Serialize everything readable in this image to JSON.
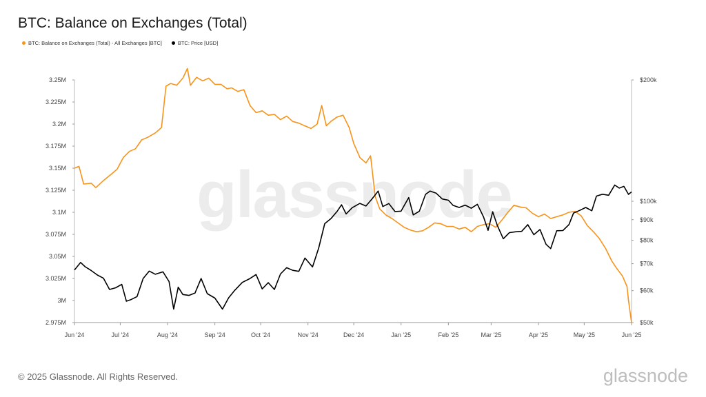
{
  "title": "BTC: Balance on Exchanges (Total)",
  "legend": {
    "items": [
      {
        "label": "BTC: Balance on Exchanges (Total) - All Exchanges [BTC]",
        "color": "#F7931A"
      },
      {
        "label": "BTC: Price [USD]",
        "color": "#000000"
      }
    ]
  },
  "watermark": "glassnode",
  "footer": "© 2025 Glassnode. All Rights Reserved.",
  "brand": "glassnode",
  "chart_data": {
    "type": "line",
    "title": "BTC: Balance on Exchanges (Total)",
    "x_ticks": [
      "Jun '24",
      "Jul '24",
      "Aug '24",
      "Sep '24",
      "Oct '24",
      "Nov '24",
      "Dec '24",
      "Jan '25",
      "Feb '25",
      "Mar '25",
      "Apr '25",
      "May '25",
      "Jun '25"
    ],
    "x_range": [
      "2024-06-01",
      "2025-06-01"
    ],
    "left_axis": {
      "label": "",
      "ticks": [
        "2.975M",
        "3M",
        "3.025M",
        "3.05M",
        "3.075M",
        "3.1M",
        "3.125M",
        "3.15M",
        "3.175M",
        "3.2M",
        "3.225M",
        "3.25M"
      ],
      "ylim": [
        2.975,
        3.25
      ],
      "unit": "M BTC"
    },
    "right_axis": {
      "label": "",
      "scale": "log",
      "ticks": [
        "$50k",
        "$60k",
        "$70k",
        "$80k",
        "$90k",
        "$100k",
        "$200k"
      ],
      "ylim": [
        50000,
        200000
      ]
    },
    "grid": false,
    "legend_position": "top-left",
    "series": [
      {
        "name": "BTC: Balance on Exchanges (Total) - All Exchanges [BTC]",
        "axis": "left",
        "color": "#F7931A",
        "points": [
          [
            "2024-06-01",
            3.15
          ],
          [
            "2024-06-04",
            3.152
          ],
          [
            "2024-06-07",
            3.132
          ],
          [
            "2024-06-12",
            3.133
          ],
          [
            "2024-06-15",
            3.128
          ],
          [
            "2024-06-20",
            3.136
          ],
          [
            "2024-06-25",
            3.143
          ],
          [
            "2024-06-29",
            3.149
          ],
          [
            "2024-07-03",
            3.162
          ],
          [
            "2024-07-07",
            3.169
          ],
          [
            "2024-07-11",
            3.172
          ],
          [
            "2024-07-15",
            3.182
          ],
          [
            "2024-07-19",
            3.185
          ],
          [
            "2024-07-24",
            3.19
          ],
          [
            "2024-07-28",
            3.196
          ],
          [
            "2024-07-31",
            3.243
          ],
          [
            "2024-08-03",
            3.246
          ],
          [
            "2024-08-07",
            3.244
          ],
          [
            "2024-08-11",
            3.252
          ],
          [
            "2024-08-14",
            3.263
          ],
          [
            "2024-08-16",
            3.244
          ],
          [
            "2024-08-20",
            3.253
          ],
          [
            "2024-08-24",
            3.249
          ],
          [
            "2024-08-28",
            3.252
          ],
          [
            "2024-09-01",
            3.245
          ],
          [
            "2024-09-05",
            3.245
          ],
          [
            "2024-09-09",
            3.24
          ],
          [
            "2024-09-12",
            3.241
          ],
          [
            "2024-09-16",
            3.237
          ],
          [
            "2024-09-20",
            3.239
          ],
          [
            "2024-09-24",
            3.221
          ],
          [
            "2024-09-28",
            3.213
          ],
          [
            "2024-10-02",
            3.215
          ],
          [
            "2024-10-06",
            3.21
          ],
          [
            "2024-10-10",
            3.211
          ],
          [
            "2024-10-14",
            3.205
          ],
          [
            "2024-10-18",
            3.209
          ],
          [
            "2024-10-22",
            3.203
          ],
          [
            "2024-10-26",
            3.201
          ],
          [
            "2024-10-30",
            3.198
          ],
          [
            "2024-11-03",
            3.195
          ],
          [
            "2024-11-07",
            3.2
          ],
          [
            "2024-11-10",
            3.221
          ],
          [
            "2024-11-13",
            3.198
          ],
          [
            "2024-11-16",
            3.203
          ],
          [
            "2024-11-20",
            3.208
          ],
          [
            "2024-11-24",
            3.21
          ],
          [
            "2024-11-28",
            3.196
          ],
          [
            "2024-12-01",
            3.178
          ],
          [
            "2024-12-05",
            3.162
          ],
          [
            "2024-12-09",
            3.156
          ],
          [
            "2024-12-12",
            3.164
          ],
          [
            "2024-12-15",
            3.118
          ],
          [
            "2024-12-18",
            3.104
          ],
          [
            "2024-12-22",
            3.097
          ],
          [
            "2024-12-26",
            3.093
          ],
          [
            "2024-12-30",
            3.088
          ],
          [
            "2025-01-03",
            3.083
          ],
          [
            "2025-01-07",
            3.08
          ],
          [
            "2025-01-11",
            3.078
          ],
          [
            "2025-01-15",
            3.079
          ],
          [
            "2025-01-19",
            3.083
          ],
          [
            "2025-01-23",
            3.088
          ],
          [
            "2025-01-27",
            3.087
          ],
          [
            "2025-01-31",
            3.084
          ],
          [
            "2025-02-04",
            3.084
          ],
          [
            "2025-02-08",
            3.081
          ],
          [
            "2025-02-12",
            3.083
          ],
          [
            "2025-02-16",
            3.078
          ],
          [
            "2025-02-20",
            3.084
          ],
          [
            "2025-02-24",
            3.086
          ],
          [
            "2025-02-28",
            3.087
          ],
          [
            "2025-03-04",
            3.083
          ],
          [
            "2025-03-08",
            3.091
          ],
          [
            "2025-03-12",
            3.1
          ],
          [
            "2025-03-16",
            3.108
          ],
          [
            "2025-03-20",
            3.106
          ],
          [
            "2025-03-24",
            3.105
          ],
          [
            "2025-03-28",
            3.099
          ],
          [
            "2025-04-01",
            3.095
          ],
          [
            "2025-04-05",
            3.098
          ],
          [
            "2025-04-09",
            3.093
          ],
          [
            "2025-04-13",
            3.095
          ],
          [
            "2025-04-17",
            3.097
          ],
          [
            "2025-04-21",
            3.1
          ],
          [
            "2025-04-25",
            3.101
          ],
          [
            "2025-04-29",
            3.096
          ],
          [
            "2025-05-03",
            3.085
          ],
          [
            "2025-05-07",
            3.078
          ],
          [
            "2025-05-11",
            3.07
          ],
          [
            "2025-05-15",
            3.059
          ],
          [
            "2025-05-19",
            3.045
          ],
          [
            "2025-05-22",
            3.037
          ],
          [
            "2025-05-26",
            3.028
          ],
          [
            "2025-05-29",
            3.016
          ],
          [
            "2025-05-30",
            3.0
          ],
          [
            "2025-06-01",
            2.975
          ]
        ]
      },
      {
        "name": "BTC: Price [USD]",
        "axis": "right",
        "color": "#000000",
        "points": [
          [
            "2024-06-01",
            67500
          ],
          [
            "2024-06-05",
            70500
          ],
          [
            "2024-06-08",
            68800
          ],
          [
            "2024-06-12",
            67300
          ],
          [
            "2024-06-16",
            65600
          ],
          [
            "2024-06-20",
            64400
          ],
          [
            "2024-06-24",
            60400
          ],
          [
            "2024-06-28",
            61000
          ],
          [
            "2024-07-02",
            62200
          ],
          [
            "2024-07-05",
            56500
          ],
          [
            "2024-07-08",
            57000
          ],
          [
            "2024-07-12",
            58000
          ],
          [
            "2024-07-16",
            64300
          ],
          [
            "2024-07-20",
            67100
          ],
          [
            "2024-07-24",
            65900
          ],
          [
            "2024-07-29",
            66800
          ],
          [
            "2024-08-02",
            63200
          ],
          [
            "2024-08-05",
            54000
          ],
          [
            "2024-08-08",
            61200
          ],
          [
            "2024-08-11",
            58700
          ],
          [
            "2024-08-15",
            58400
          ],
          [
            "2024-08-19",
            59200
          ],
          [
            "2024-08-23",
            64300
          ],
          [
            "2024-08-27",
            59000
          ],
          [
            "2024-09-01",
            57500
          ],
          [
            "2024-09-06",
            54000
          ],
          [
            "2024-09-10",
            57600
          ],
          [
            "2024-09-14",
            60100
          ],
          [
            "2024-09-19",
            62900
          ],
          [
            "2024-09-24",
            64300
          ],
          [
            "2024-09-28",
            65800
          ],
          [
            "2024-10-02",
            60600
          ],
          [
            "2024-10-06",
            62800
          ],
          [
            "2024-10-10",
            60400
          ],
          [
            "2024-10-14",
            66000
          ],
          [
            "2024-10-18",
            68400
          ],
          [
            "2024-10-22",
            67400
          ],
          [
            "2024-10-26",
            67000
          ],
          [
            "2024-10-30",
            72300
          ],
          [
            "2024-11-04",
            68700
          ],
          [
            "2024-11-08",
            76500
          ],
          [
            "2024-11-12",
            88000
          ],
          [
            "2024-11-16",
            90500
          ],
          [
            "2024-11-20",
            94300
          ],
          [
            "2024-11-23",
            98000
          ],
          [
            "2024-11-26",
            93000
          ],
          [
            "2024-11-30",
            96400
          ],
          [
            "2024-12-05",
            98800
          ],
          [
            "2024-12-09",
            97300
          ],
          [
            "2024-12-13",
            101400
          ],
          [
            "2024-12-17",
            106000
          ],
          [
            "2024-12-20",
            97000
          ],
          [
            "2024-12-24",
            98700
          ],
          [
            "2024-12-28",
            94300
          ],
          [
            "2025-01-01",
            94500
          ],
          [
            "2025-01-06",
            102100
          ],
          [
            "2025-01-09",
            92500
          ],
          [
            "2025-01-13",
            94500
          ],
          [
            "2025-01-17",
            104000
          ],
          [
            "2025-01-20",
            106000
          ],
          [
            "2025-01-24",
            104700
          ],
          [
            "2025-01-28",
            101300
          ],
          [
            "2025-02-01",
            100600
          ],
          [
            "2025-02-04",
            97700
          ],
          [
            "2025-02-08",
            96500
          ],
          [
            "2025-02-12",
            97800
          ],
          [
            "2025-02-16",
            96100
          ],
          [
            "2025-02-20",
            98300
          ],
          [
            "2025-02-24",
            91500
          ],
          [
            "2025-02-27",
            84700
          ],
          [
            "2025-03-02",
            94200
          ],
          [
            "2025-03-05",
            87200
          ],
          [
            "2025-03-09",
            80700
          ],
          [
            "2025-03-13",
            83600
          ],
          [
            "2025-03-17",
            84000
          ],
          [
            "2025-03-21",
            84200
          ],
          [
            "2025-03-25",
            87500
          ],
          [
            "2025-03-29",
            82600
          ],
          [
            "2025-04-02",
            85100
          ],
          [
            "2025-04-06",
            78200
          ],
          [
            "2025-04-09",
            76300
          ],
          [
            "2025-04-13",
            84500
          ],
          [
            "2025-04-17",
            84600
          ],
          [
            "2025-04-21",
            87500
          ],
          [
            "2025-04-24",
            93500
          ],
          [
            "2025-04-28",
            94900
          ],
          [
            "2025-05-02",
            96500
          ],
          [
            "2025-05-06",
            94700
          ],
          [
            "2025-05-09",
            103000
          ],
          [
            "2025-05-13",
            104100
          ],
          [
            "2025-05-17",
            103500
          ],
          [
            "2025-05-21",
            109700
          ],
          [
            "2025-05-24",
            107800
          ],
          [
            "2025-05-27",
            108900
          ],
          [
            "2025-05-30",
            104000
          ],
          [
            "2025-06-01",
            105500
          ]
        ]
      }
    ]
  }
}
